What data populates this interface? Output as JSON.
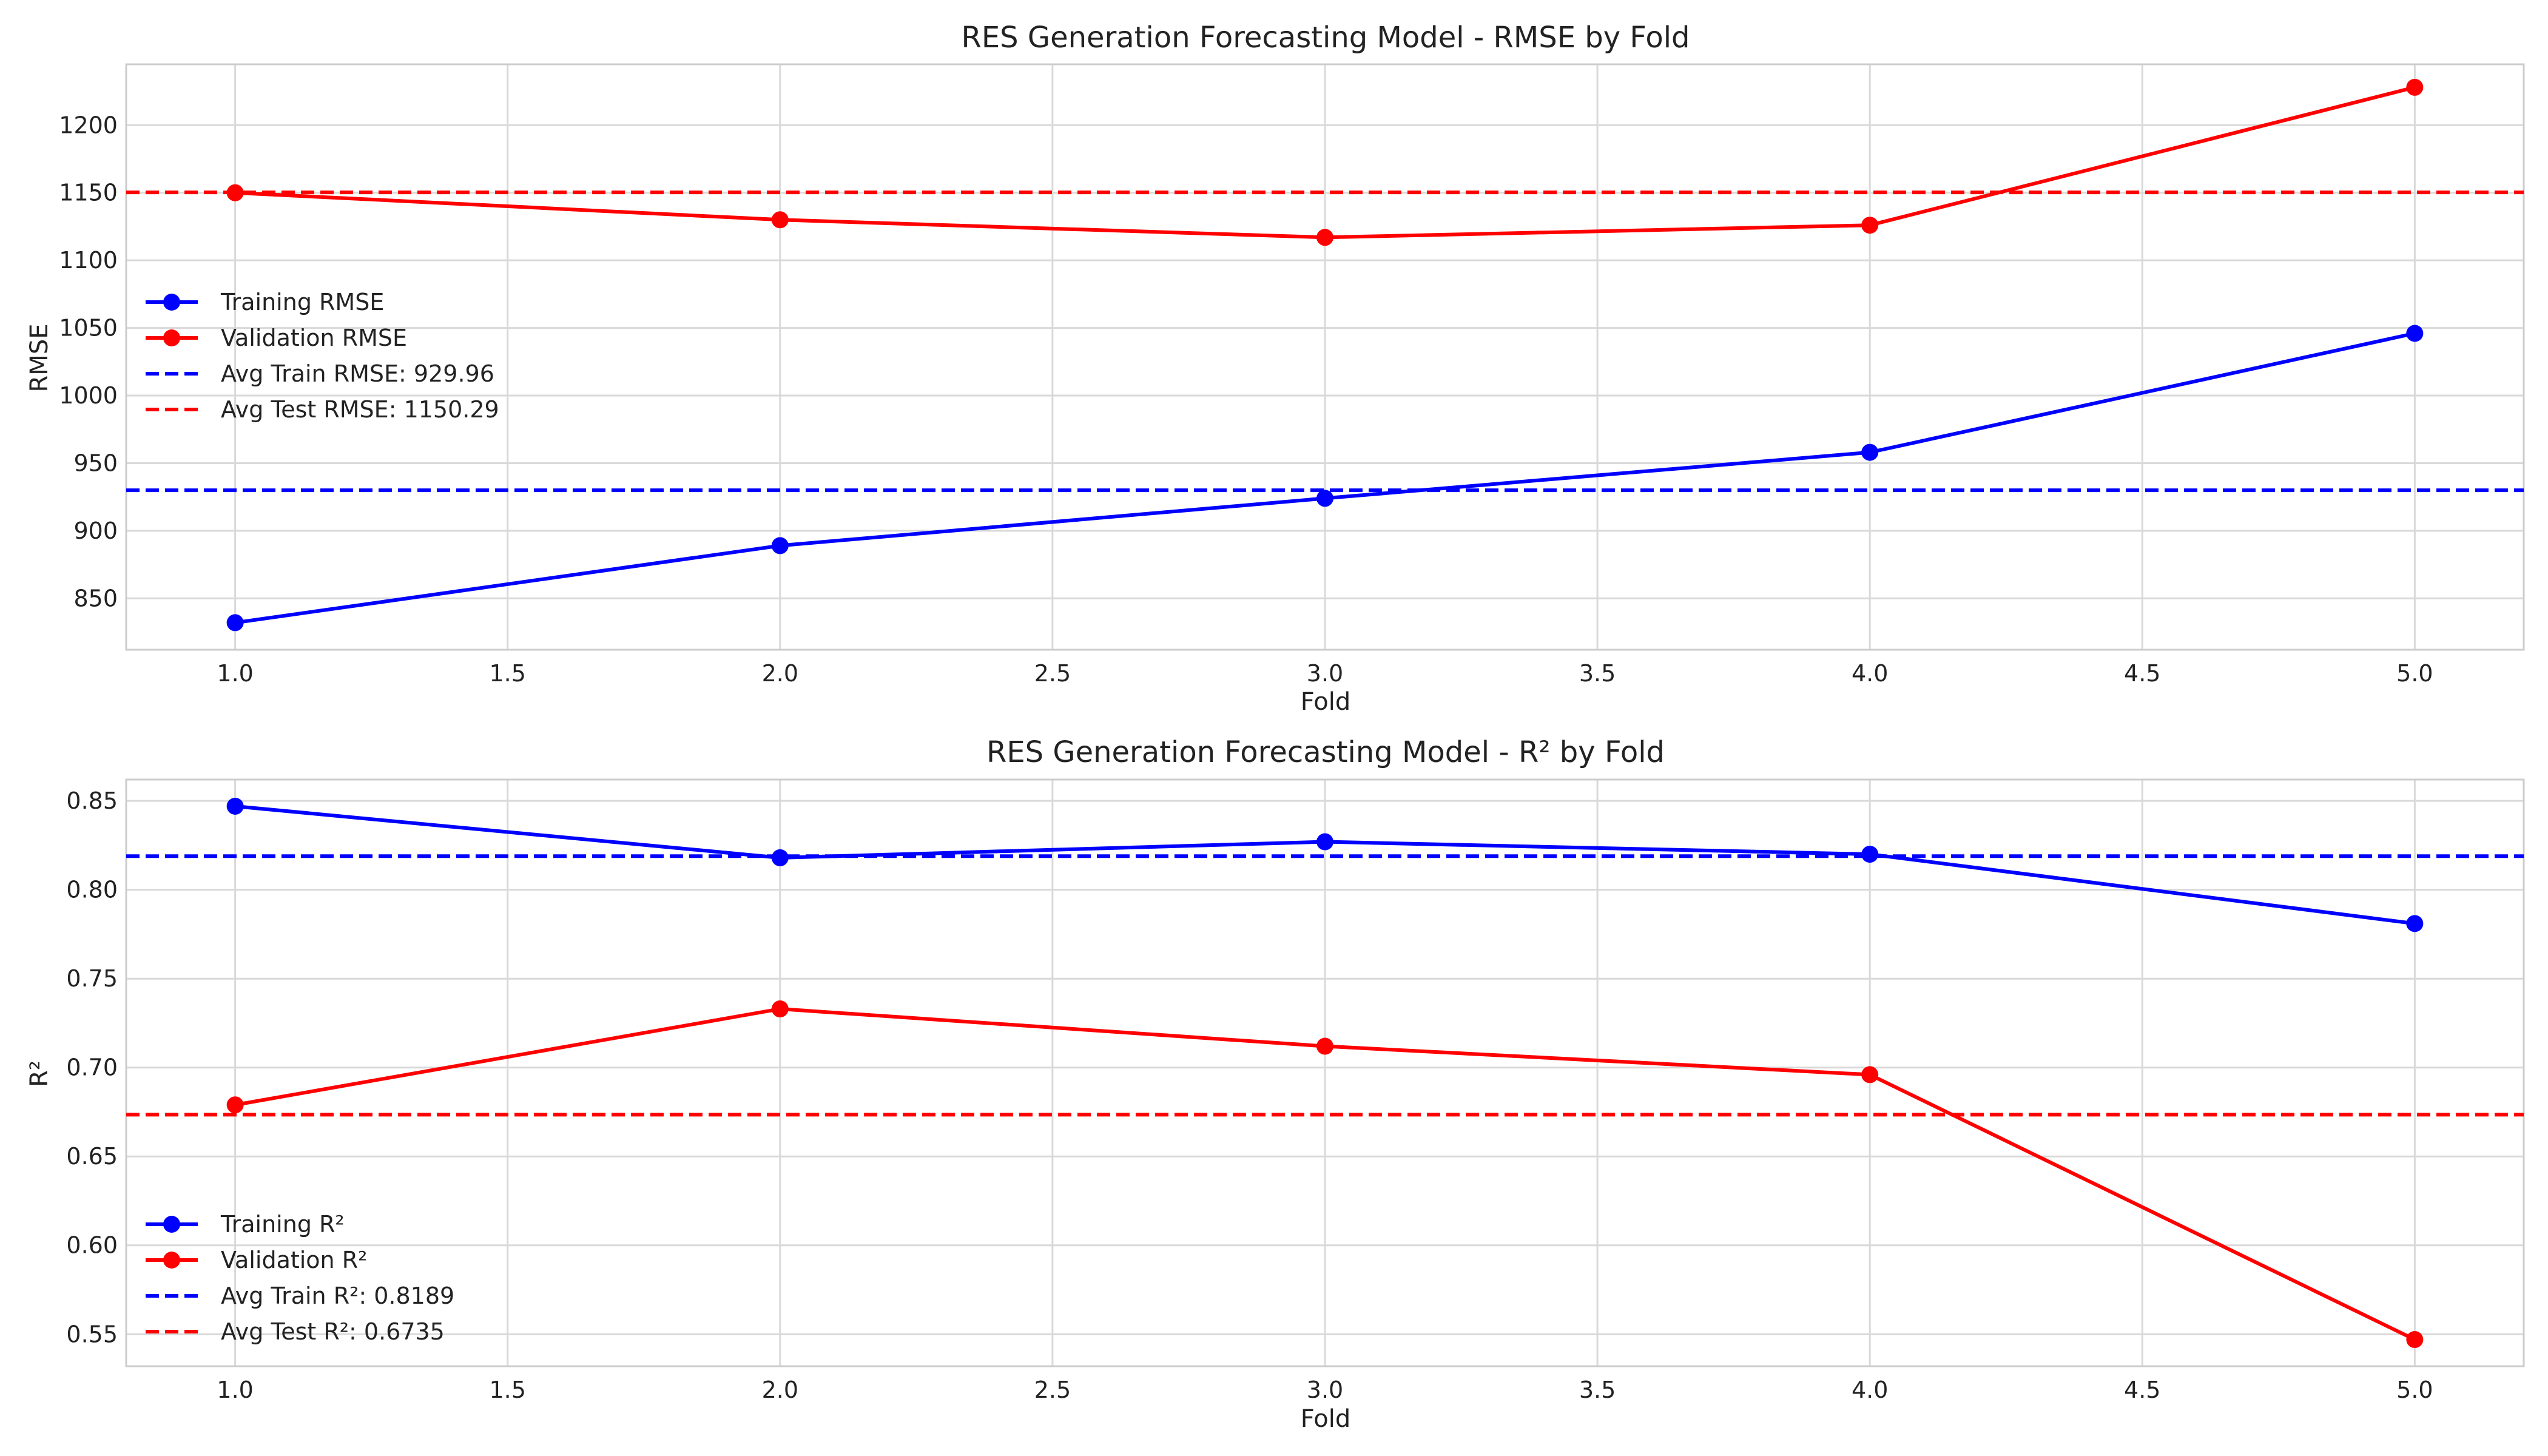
{
  "chart_data": [
    {
      "type": "line",
      "title": "RES Generation Forecasting Model - RMSE by Fold",
      "xlabel": "Fold",
      "ylabel": "RMSE",
      "x": [
        1,
        2,
        3,
        4,
        5
      ],
      "xlim": [
        0.8,
        5.2
      ],
      "ylim": [
        812,
        1245
      ],
      "xticks": [
        "1.0",
        "1.5",
        "2.0",
        "2.5",
        "3.0",
        "3.5",
        "4.0",
        "4.5",
        "5.0"
      ],
      "yticks": [
        "850",
        "900",
        "950",
        "1000",
        "1050",
        "1100",
        "1150",
        "1200"
      ],
      "grid": true,
      "legend_position": "center-left",
      "series": [
        {
          "name": "Training RMSE",
          "color": "#0000ff",
          "style": "solid-marker",
          "values": [
            832,
            889,
            924,
            958,
            1046
          ]
        },
        {
          "name": "Validation RMSE",
          "color": "#ff0000",
          "style": "solid-marker",
          "values": [
            1150,
            1130,
            1117,
            1126,
            1228
          ]
        }
      ],
      "reference_lines": [
        {
          "name": "Avg Train RMSE: 929.96",
          "color": "#0000ff",
          "value": 929.96
        },
        {
          "name": "Avg Test RMSE: 1150.29",
          "color": "#ff0000",
          "value": 1150.29
        }
      ]
    },
    {
      "type": "line",
      "title": "RES Generation Forecasting Model - R² by Fold",
      "xlabel": "Fold",
      "ylabel": "R²",
      "x": [
        1,
        2,
        3,
        4,
        5
      ],
      "xlim": [
        0.8,
        5.2
      ],
      "ylim": [
        0.532,
        0.862
      ],
      "xticks": [
        "1.0",
        "1.5",
        "2.0",
        "2.5",
        "3.0",
        "3.5",
        "4.0",
        "4.5",
        "5.0"
      ],
      "yticks": [
        "0.55",
        "0.60",
        "0.65",
        "0.70",
        "0.75",
        "0.80",
        "0.85"
      ],
      "grid": true,
      "legend_position": "lower-left",
      "series": [
        {
          "name": "Training R²",
          "color": "#0000ff",
          "style": "solid-marker",
          "values": [
            0.847,
            0.818,
            0.827,
            0.82,
            0.781
          ]
        },
        {
          "name": "Validation R²",
          "color": "#ff0000",
          "style": "solid-marker",
          "values": [
            0.679,
            0.733,
            0.712,
            0.696,
            0.547
          ]
        }
      ],
      "reference_lines": [
        {
          "name": "Avg Train R²: 0.8189",
          "color": "#0000ff",
          "value": 0.8189
        },
        {
          "name": "Avg Test R²: 0.6735",
          "color": "#ff0000",
          "value": 0.6735
        }
      ]
    }
  ]
}
